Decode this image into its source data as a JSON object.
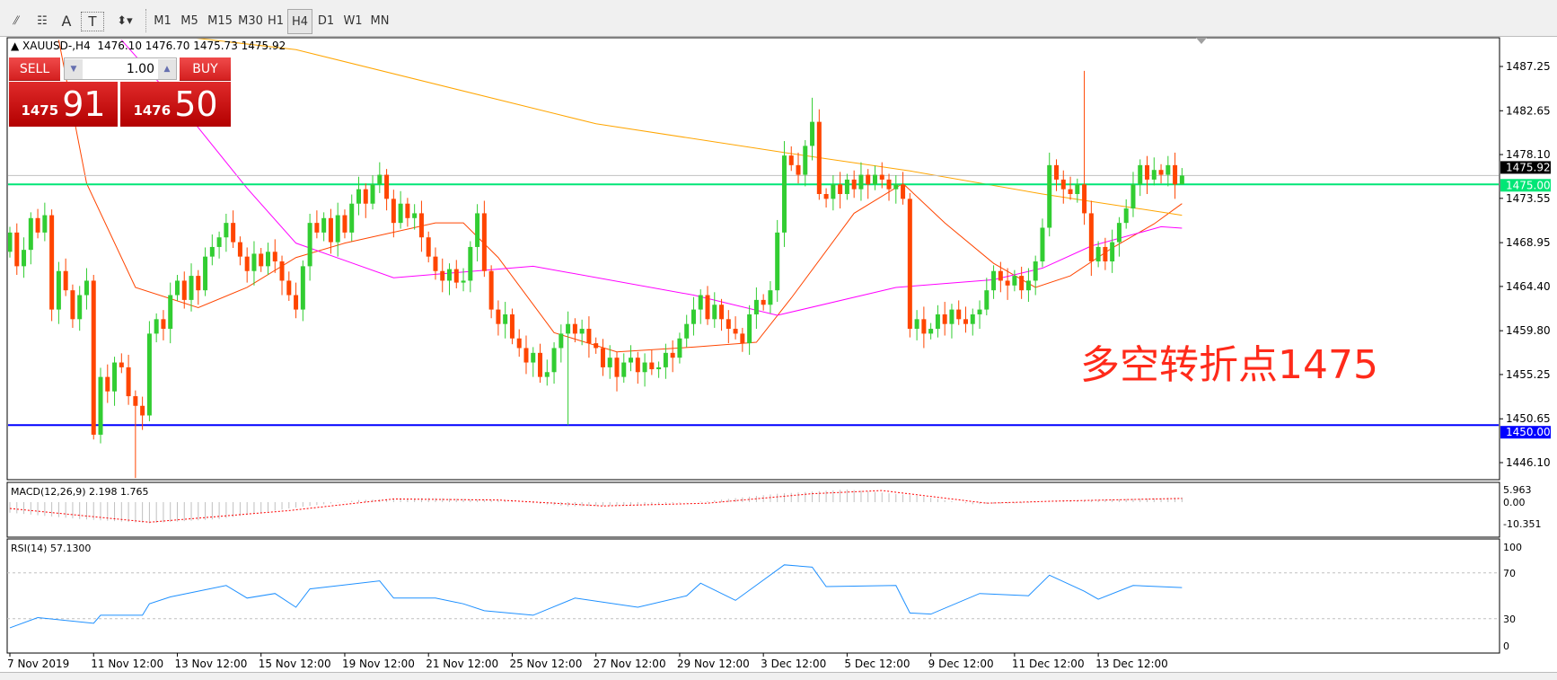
{
  "toolbar": {
    "tools": [
      {
        "name": "fibonacci-expansion-icon",
        "glyph": "⫽"
      },
      {
        "name": "fibonacci-channel-icon",
        "glyph": "☷"
      },
      {
        "name": "text-tool-icon",
        "glyph": "A"
      },
      {
        "name": "text-label-icon",
        "glyph": "T"
      },
      {
        "name": "arrows-icon",
        "glyph": "⬍▾"
      }
    ],
    "timeframes": [
      "M1",
      "M5",
      "M15",
      "M30",
      "H1",
      "H4",
      "D1",
      "W1",
      "MN"
    ],
    "active_timeframe": "H4"
  },
  "chart": {
    "header": "XAUUSD-,H4  1476.10 1476.70 1475.73 1475.92",
    "annotation": "多空转折点1475",
    "colors": {
      "bull": "#32cd32",
      "bear": "#ff4500",
      "ma_fast": "#ff4500",
      "ma_mid": "#ff00ff",
      "ma_slow": "#ffa500",
      "level_green": "#00e676",
      "level_blue": "#0000ff",
      "annotation": "#ff2a1a",
      "rsi": "#1e90ff",
      "macd_signal": "#ff0000",
      "macd_hist": "#c0c0c0"
    },
    "levels": [
      {
        "price": 1475.0,
        "label": "1475.00",
        "color": "#00e676"
      },
      {
        "price": 1450.0,
        "label": "1450.00",
        "color": "#0000ff"
      }
    ],
    "current_price": {
      "price": 1475.92,
      "label": "1475.92"
    }
  },
  "trade_panel": {
    "sell_label": "SELL",
    "buy_label": "BUY",
    "lot": "1.00",
    "sell_price_small": "1475",
    "sell_price_big": "91",
    "buy_price_small": "1476",
    "buy_price_big": "50"
  },
  "chart_data": [
    {
      "type": "candlestick",
      "symbol": "XAUUSD-",
      "timeframe": "H4",
      "ylim": [
        1442.5,
        1491.3
      ],
      "y_ticks": [
        "1487.25",
        "1482.65",
        "1478.10",
        "1473.55",
        "1468.95",
        "1464.40",
        "1459.80",
        "1455.25",
        "1450.65",
        "1446.10"
      ],
      "x_tick_labels": [
        "7 Nov 2019",
        "11 Nov 12:00",
        "13 Nov 12:00",
        "15 Nov 12:00",
        "19 Nov 12:00",
        "21 Nov 12:00",
        "25 Nov 12:00",
        "27 Nov 12:00",
        "29 Nov 12:00",
        "3 Dec 12:00",
        "5 Dec 12:00",
        "9 Dec 12:00",
        "11 Dec 12:00",
        "13 Dec 12:00"
      ],
      "x_tick_every_bars": 12,
      "close": [
        1470.0,
        1466.5,
        1468.2,
        1471.5,
        1470.0,
        1471.8,
        1462.0,
        1466.0,
        1464.0,
        1461.0,
        1463.5,
        1465.0,
        1449.0,
        1455.0,
        1453.5,
        1456.5,
        1456.0,
        1453.0,
        1452.0,
        1451.0,
        1459.5,
        1461.0,
        1460.0,
        1463.5,
        1465.0,
        1463.0,
        1465.5,
        1464.0,
        1467.5,
        1468.5,
        1469.5,
        1471.0,
        1469.0,
        1467.5,
        1466.0,
        1467.8,
        1466.5,
        1468.0,
        1467.0,
        1465.0,
        1463.5,
        1462.0,
        1466.5,
        1471.0,
        1470.0,
        1471.5,
        1469.0,
        1471.8,
        1470.0,
        1473.0,
        1474.5,
        1473.0,
        1475.0,
        1476.0,
        1473.5,
        1471.0,
        1473.0,
        1471.5,
        1472.0,
        1469.5,
        1467.5,
        1466.0,
        1465.0,
        1466.2,
        1464.8,
        1465.0,
        1468.5,
        1472.0,
        1466.0,
        1462.0,
        1460.5,
        1461.5,
        1459.0,
        1458.0,
        1456.5,
        1457.5,
        1455.0,
        1455.5,
        1458.0,
        1459.5,
        1460.5,
        1459.5,
        1460.0,
        1458.5,
        1458.0,
        1456.0,
        1457.0,
        1455.0,
        1456.5,
        1457.0,
        1455.5,
        1456.5,
        1455.8,
        1456.0,
        1457.5,
        1457.0,
        1459.0,
        1460.5,
        1462.0,
        1463.5,
        1461.0,
        1462.5,
        1461.0,
        1460.0,
        1459.5,
        1458.5,
        1461.5,
        1463.0,
        1462.5,
        1464.0,
        1470.0,
        1478.0,
        1477.0,
        1476.0,
        1479.0,
        1481.5,
        1474.0,
        1473.5,
        1475.0,
        1474.0,
        1475.5,
        1474.5,
        1476.0,
        1475.0,
        1476.0,
        1475.5,
        1474.5,
        1475.0,
        1473.5,
        1460.0,
        1461.0,
        1459.5,
        1460.0,
        1461.5,
        1460.5,
        1462.0,
        1461.0,
        1460.5,
        1461.5,
        1462.0,
        1464.0,
        1466.0,
        1465.0,
        1464.5,
        1465.5,
        1464.0,
        1465.0,
        1467.0,
        1470.5,
        1477.0,
        1475.5,
        1474.5,
        1474.0,
        1475.0,
        1472.0,
        1467.0,
        1468.5,
        1467.0,
        1469.0,
        1471.0,
        1472.5,
        1475.0,
        1477.0,
        1475.5,
        1476.5,
        1476.0,
        1477.0,
        1475.0,
        1475.92
      ],
      "open_first": 1468.0,
      "wick_extremes": [
        {
          "bar": 12,
          "low": 1448.5
        },
        {
          "bar": 18,
          "low": 1444.5
        },
        {
          "bar": 80,
          "low": 1450.0
        },
        {
          "bar": 111,
          "high": 1479.5
        },
        {
          "bar": 115,
          "high": 1484.0
        },
        {
          "bar": 154,
          "high": 1486.8
        },
        {
          "bar": 168,
          "high": 1476.7,
          "low": 1475.73
        }
      ],
      "moving_averages": [
        {
          "color": "#ff4500",
          "points": [
            [
              7,
              1490
            ],
            [
              11,
              1475.1
            ],
            [
              18,
              1464.3
            ],
            [
              27,
              1462.2
            ],
            [
              34,
              1464.3
            ],
            [
              41,
              1467.4
            ],
            [
              48,
              1468.9
            ],
            [
              61,
              1471
            ],
            [
              65,
              1471
            ],
            [
              70,
              1467.4
            ],
            [
              78,
              1459.6
            ],
            [
              87,
              1457.6
            ],
            [
              98,
              1458.1
            ],
            [
              107,
              1458.6
            ],
            [
              112,
              1463.2
            ],
            [
              121,
              1472
            ],
            [
              128,
              1475.1
            ],
            [
              134,
              1471
            ],
            [
              141,
              1466.8
            ],
            [
              147,
              1464.3
            ],
            [
              152,
              1465.5
            ],
            [
              158,
              1468.4
            ],
            [
              164,
              1470.9
            ],
            [
              168,
              1473
            ]
          ]
        },
        {
          "color": "#ff00ff",
          "points": [
            [
              16,
              1490
            ],
            [
              26,
              1481.8
            ],
            [
              34,
              1474.6
            ],
            [
              41,
              1468.9
            ],
            [
              55,
              1465.3
            ],
            [
              75,
              1466.5
            ],
            [
              98,
              1463.5
            ],
            [
              110,
              1461.4
            ],
            [
              127,
              1464.3
            ],
            [
              141,
              1465.1
            ],
            [
              148,
              1466.3
            ],
            [
              155,
              1468.6
            ],
            [
              165,
              1470.6
            ],
            [
              168,
              1470.45
            ]
          ]
        },
        {
          "color": "#ffa500",
          "points": [
            [
              0,
              1491.5
            ],
            [
              23,
              1490.5
            ],
            [
              41,
              1489
            ],
            [
              84,
              1481.3
            ],
            [
              112,
              1478.2
            ],
            [
              129,
              1476.4
            ],
            [
              148,
              1474
            ],
            [
              168,
              1471.8
            ]
          ]
        }
      ]
    },
    {
      "type": "bar+line",
      "title": "MACD(12,26,9) 2.198 1.765",
      "y_ticks": [
        "5.963",
        "0.00",
        "-10.351"
      ],
      "ylim": [
        -10.351,
        5.963
      ],
      "macd_points": [
        [
          0,
          -5
        ],
        [
          10,
          -8
        ],
        [
          20,
          -10
        ],
        [
          30,
          -8
        ],
        [
          40,
          -3
        ],
        [
          50,
          1
        ],
        [
          60,
          2
        ],
        [
          70,
          1
        ],
        [
          80,
          -2
        ],
        [
          90,
          -1.5
        ],
        [
          100,
          0.5
        ],
        [
          110,
          4
        ],
        [
          120,
          6
        ],
        [
          130,
          3
        ],
        [
          138,
          -1
        ],
        [
          145,
          -0.5
        ],
        [
          155,
          1
        ],
        [
          168,
          2.198
        ]
      ],
      "signal_points": [
        [
          0,
          -3
        ],
        [
          20,
          -9.5
        ],
        [
          40,
          -4
        ],
        [
          55,
          1.5
        ],
        [
          70,
          1
        ],
        [
          85,
          -1.8
        ],
        [
          100,
          -0.5
        ],
        [
          115,
          4
        ],
        [
          125,
          5.5
        ],
        [
          140,
          -0.5
        ],
        [
          150,
          0.5
        ],
        [
          168,
          1.765
        ]
      ]
    },
    {
      "type": "line",
      "title": "RSI(14) 57.1300",
      "y_ticks": [
        "100",
        "70",
        "30",
        "0"
      ],
      "ylim": [
        0,
        100
      ],
      "levels": [
        70,
        30
      ],
      "points": [
        [
          0,
          22
        ],
        [
          4,
          31
        ],
        [
          12,
          26
        ],
        [
          13,
          33
        ],
        [
          19,
          33
        ],
        [
          20,
          43
        ],
        [
          23,
          49
        ],
        [
          31,
          59
        ],
        [
          34,
          48
        ],
        [
          38,
          52
        ],
        [
          41,
          40
        ],
        [
          43,
          56
        ],
        [
          53,
          63
        ],
        [
          55,
          48
        ],
        [
          61,
          48
        ],
        [
          65,
          43
        ],
        [
          68,
          37
        ],
        [
          75,
          33
        ],
        [
          81,
          48
        ],
        [
          90,
          40
        ],
        [
          97,
          50
        ],
        [
          99,
          61
        ],
        [
          104,
          46
        ],
        [
          111,
          77
        ],
        [
          115,
          75
        ],
        [
          117,
          58
        ],
        [
          127,
          59
        ],
        [
          129,
          35
        ],
        [
          132,
          34
        ],
        [
          139,
          52
        ],
        [
          146,
          50
        ],
        [
          149,
          68
        ],
        [
          154,
          54
        ],
        [
          156,
          47
        ],
        [
          161,
          59
        ],
        [
          168,
          57.13
        ]
      ]
    }
  ]
}
